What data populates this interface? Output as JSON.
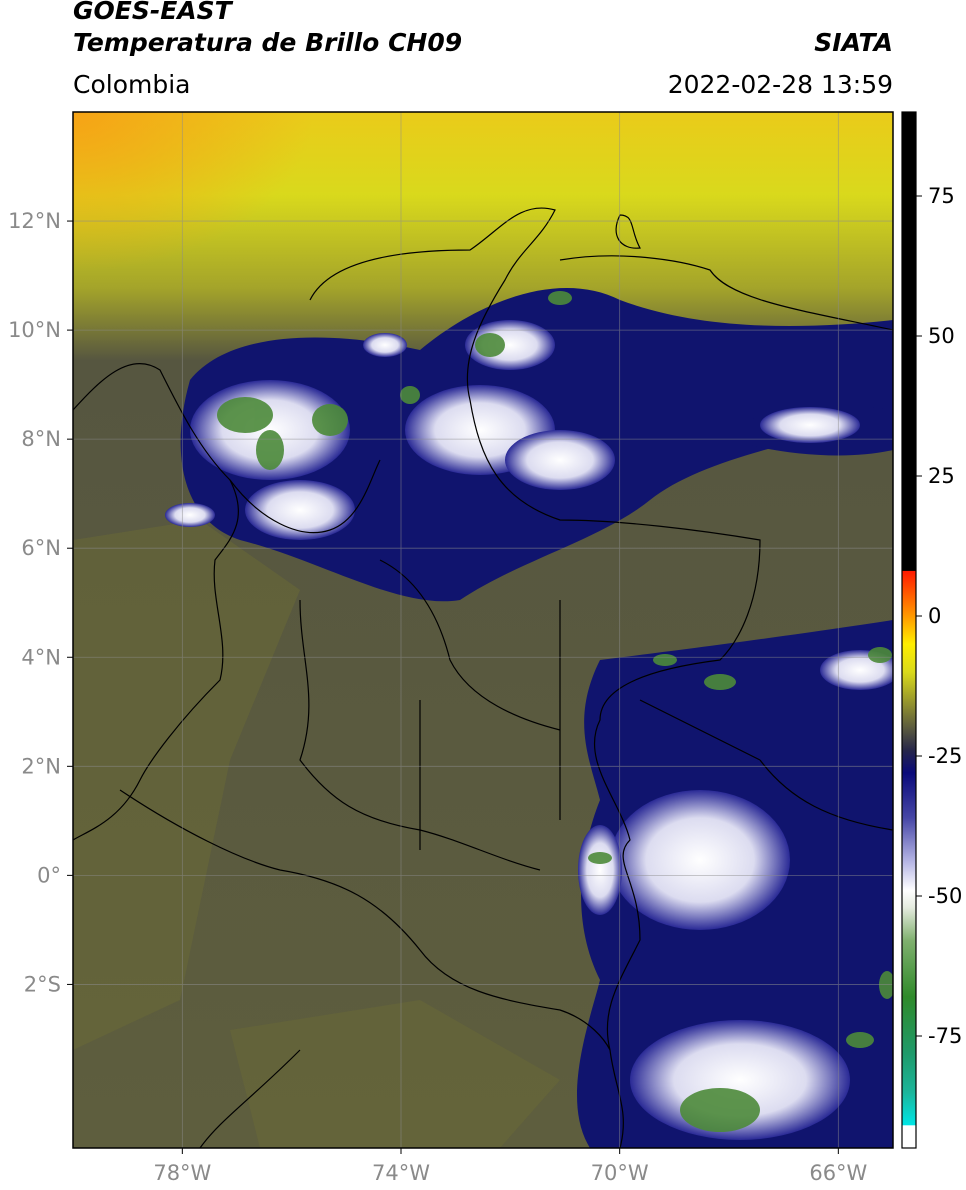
{
  "header": {
    "satellite": "GOES-EAST",
    "product": "Temperatura de Brillo CH09",
    "agency": "SIATA",
    "region": "Colombia",
    "timestamp": "2022-02-28 13:59"
  },
  "map": {
    "lon_range": [
      -80,
      -65
    ],
    "lat_range": [
      -5,
      14
    ],
    "lon_ticks": [
      {
        "value": -78,
        "label": "78°W"
      },
      {
        "value": -74,
        "label": "74°W"
      },
      {
        "value": -70,
        "label": "70°W"
      },
      {
        "value": -66,
        "label": "66°W"
      }
    ],
    "lat_ticks": [
      {
        "value": 12,
        "label": "12°N"
      },
      {
        "value": 10,
        "label": "10°N"
      },
      {
        "value": 8,
        "label": "8°N"
      },
      {
        "value": 6,
        "label": "6°N"
      },
      {
        "value": 4,
        "label": "4°N"
      },
      {
        "value": 2,
        "label": "2°N"
      },
      {
        "value": 0,
        "label": "0°"
      },
      {
        "value": -2,
        "label": "2°S"
      }
    ],
    "grid": true,
    "colors": {
      "background_olive": "#5e5e3e",
      "yellow": "#d8d81c",
      "navy": "#10146e",
      "white": "#f2f2f2",
      "green": "#4c8a3a",
      "border": "#000000"
    }
  },
  "colorbar": {
    "range": [
      -95,
      90
    ],
    "ticks": [
      {
        "value": 75,
        "label": "75"
      },
      {
        "value": 50,
        "label": "50"
      },
      {
        "value": 25,
        "label": "25"
      },
      {
        "value": 0,
        "label": "0"
      },
      {
        "value": -25,
        "label": "-25"
      },
      {
        "value": -50,
        "label": "-50"
      },
      {
        "value": -75,
        "label": "-75"
      }
    ],
    "stops": [
      {
        "value": -95,
        "color": "#ffffff"
      },
      {
        "value": -91,
        "color": "#ffffff"
      },
      {
        "value": -90.9,
        "color": "#00e5e5"
      },
      {
        "value": -85,
        "color": "#1bb59a"
      },
      {
        "value": -78,
        "color": "#1f9a6a"
      },
      {
        "value": -68,
        "color": "#2f8a2a"
      },
      {
        "value": -58,
        "color": "#7fb06e"
      },
      {
        "value": -52,
        "color": "#e6ece0"
      },
      {
        "value": -49,
        "color": "#ffffff"
      },
      {
        "value": -44,
        "color": "#b8b8e6"
      },
      {
        "value": -36,
        "color": "#4646a6"
      },
      {
        "value": -28,
        "color": "#0a0a7a"
      },
      {
        "value": -24,
        "color": "#26264a"
      },
      {
        "value": -20,
        "color": "#5a5a3e"
      },
      {
        "value": -15,
        "color": "#9a9a2c"
      },
      {
        "value": -10,
        "color": "#dada1a"
      },
      {
        "value": -5,
        "color": "#ffee00"
      },
      {
        "value": 0,
        "color": "#ff9900"
      },
      {
        "value": 8,
        "color": "#ff1a00"
      },
      {
        "value": 8.1,
        "color": "#000000"
      },
      {
        "value": 90,
        "color": "#000000"
      }
    ]
  }
}
